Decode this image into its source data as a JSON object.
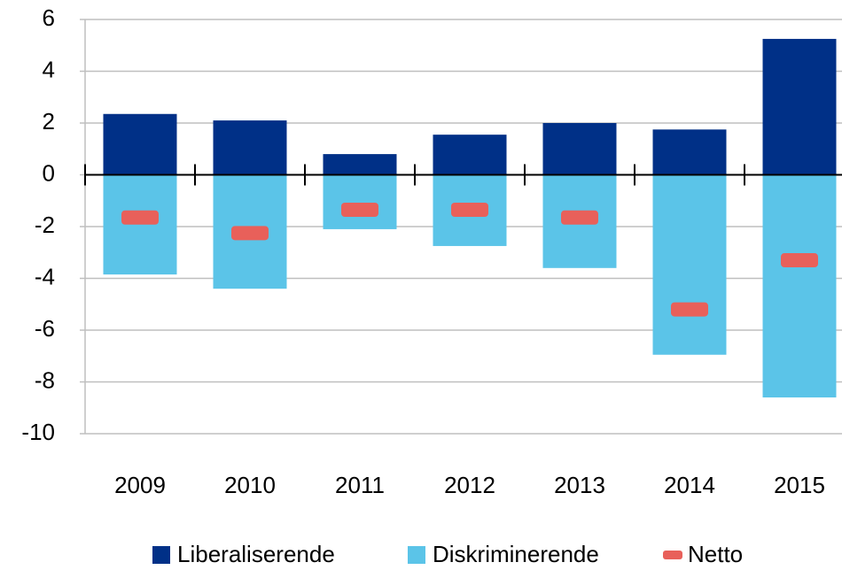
{
  "chart_data": {
    "type": "bar",
    "categories": [
      "2009",
      "2010",
      "2011",
      "2012",
      "2013",
      "2014",
      "2015"
    ],
    "series": [
      {
        "name": "Liberaliserende",
        "color": "#003087",
        "values": [
          2.35,
          2.1,
          0.8,
          1.55,
          2.0,
          1.75,
          5.25
        ]
      },
      {
        "name": "Diskriminerende",
        "color": "#5bc4e8",
        "values": [
          -3.85,
          -4.4,
          -2.1,
          -2.75,
          -3.6,
          -6.95,
          -8.6
        ]
      },
      {
        "name": "Netto",
        "color": "#e8605a",
        "marker": "dash",
        "values": [
          -1.65,
          -2.25,
          -1.35,
          -1.35,
          -1.65,
          -5.2,
          -3.3
        ]
      }
    ],
    "ylim": [
      -10,
      6
    ],
    "yticks": [
      -10,
      -8,
      -6,
      -4,
      -2,
      0,
      2,
      4,
      6
    ],
    "grid": true
  }
}
